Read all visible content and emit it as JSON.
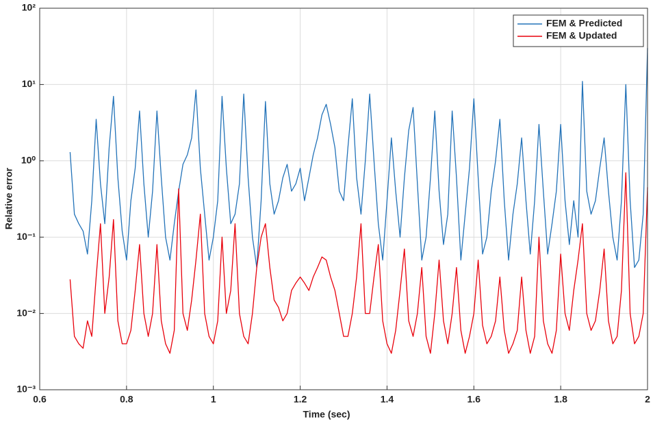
{
  "chart_data": {
    "type": "line",
    "xlabel": "Time (sec)",
    "ylabel": "Relative error",
    "log_y": true,
    "grid": true,
    "legend": "upper right",
    "xlim": [
      0.6,
      2
    ],
    "ylim": [
      0.001,
      100
    ],
    "xticks": [
      0.6,
      0.8,
      1,
      1.2,
      1.4,
      1.6,
      1.8,
      2
    ],
    "yticks": [
      {
        "value": 0.001,
        "label": "10⁻³"
      },
      {
        "value": 0.01,
        "label": "10⁻²"
      },
      {
        "value": 0.1,
        "label": "10⁻¹"
      },
      {
        "value": 1,
        "label": "10⁰"
      },
      {
        "value": 10,
        "label": "10¹"
      },
      {
        "value": 100,
        "label": "10²"
      }
    ],
    "x": [
      0.67,
      0.68,
      0.69,
      0.7,
      0.71,
      0.72,
      0.73,
      0.74,
      0.75,
      0.76,
      0.77,
      0.78,
      0.79,
      0.8,
      0.81,
      0.82,
      0.83,
      0.84,
      0.85,
      0.86,
      0.87,
      0.88,
      0.89,
      0.9,
      0.91,
      0.92,
      0.93,
      0.94,
      0.95,
      0.96,
      0.97,
      0.98,
      0.99,
      1.0,
      1.01,
      1.02,
      1.03,
      1.04,
      1.05,
      1.06,
      1.07,
      1.08,
      1.09,
      1.1,
      1.11,
      1.12,
      1.13,
      1.14,
      1.15,
      1.16,
      1.17,
      1.18,
      1.19,
      1.2,
      1.21,
      1.22,
      1.23,
      1.24,
      1.25,
      1.26,
      1.27,
      1.28,
      1.29,
      1.3,
      1.31,
      1.32,
      1.33,
      1.34,
      1.35,
      1.36,
      1.37,
      1.38,
      1.39,
      1.4,
      1.41,
      1.42,
      1.43,
      1.44,
      1.45,
      1.46,
      1.47,
      1.48,
      1.49,
      1.5,
      1.51,
      1.52,
      1.53,
      1.54,
      1.55,
      1.56,
      1.57,
      1.58,
      1.59,
      1.6,
      1.61,
      1.62,
      1.63,
      1.64,
      1.65,
      1.66,
      1.67,
      1.68,
      1.69,
      1.7,
      1.71,
      1.72,
      1.73,
      1.74,
      1.75,
      1.76,
      1.77,
      1.78,
      1.79,
      1.8,
      1.81,
      1.82,
      1.83,
      1.84,
      1.85,
      1.86,
      1.87,
      1.88,
      1.89,
      1.9,
      1.91,
      1.92,
      1.93,
      1.94,
      1.95,
      1.96,
      1.97,
      1.98,
      1.99,
      2.0
    ],
    "series": [
      {
        "name": "FEM & Predicted",
        "color": "#2272b8",
        "values": [
          1.3,
          0.2,
          0.15,
          0.12,
          0.06,
          0.3,
          3.5,
          0.5,
          0.15,
          1.5,
          7,
          0.6,
          0.12,
          0.05,
          0.3,
          0.8,
          4.5,
          0.5,
          0.1,
          0.4,
          4.5,
          0.6,
          0.1,
          0.05,
          0.15,
          0.4,
          0.9,
          1.2,
          2,
          8.5,
          0.8,
          0.2,
          0.05,
          0.1,
          0.3,
          7,
          0.8,
          0.15,
          0.2,
          0.5,
          7.5,
          0.6,
          0.1,
          0.04,
          0.3,
          6,
          0.5,
          0.2,
          0.3,
          0.6,
          0.9,
          0.4,
          0.5,
          0.8,
          0.3,
          0.6,
          1.2,
          2,
          4,
          5.5,
          3,
          1.5,
          0.4,
          0.3,
          1.5,
          6.5,
          0.6,
          0.2,
          1,
          7.5,
          1,
          0.15,
          0.05,
          0.3,
          2,
          0.4,
          0.1,
          0.6,
          2.5,
          5,
          0.5,
          0.05,
          0.1,
          0.6,
          4.5,
          0.4,
          0.08,
          0.2,
          4.5,
          0.6,
          0.05,
          0.2,
          0.8,
          6.5,
          0.6,
          0.06,
          0.1,
          0.4,
          1,
          3.5,
          0.3,
          0.05,
          0.2,
          0.5,
          2,
          0.3,
          0.06,
          0.3,
          3,
          0.4,
          0.06,
          0.15,
          0.4,
          3,
          0.3,
          0.08,
          0.3,
          0.1,
          11,
          0.4,
          0.2,
          0.3,
          0.8,
          2,
          0.4,
          0.1,
          0.05,
          0.3,
          10,
          0.3,
          0.04,
          0.05,
          0.2,
          30
        ]
      },
      {
        "name": "FEM & Updated",
        "color": "#e8000b",
        "values": [
          0.028,
          0.005,
          0.004,
          0.0035,
          0.008,
          0.005,
          0.03,
          0.15,
          0.01,
          0.03,
          0.17,
          0.008,
          0.004,
          0.004,
          0.006,
          0.02,
          0.08,
          0.01,
          0.005,
          0.01,
          0.08,
          0.008,
          0.004,
          0.003,
          0.006,
          0.43,
          0.01,
          0.006,
          0.015,
          0.05,
          0.2,
          0.01,
          0.005,
          0.004,
          0.008,
          0.1,
          0.01,
          0.02,
          0.15,
          0.01,
          0.005,
          0.004,
          0.01,
          0.04,
          0.1,
          0.15,
          0.04,
          0.015,
          0.012,
          0.008,
          0.01,
          0.02,
          0.025,
          0.03,
          0.025,
          0.02,
          0.03,
          0.04,
          0.055,
          0.05,
          0.03,
          0.02,
          0.01,
          0.005,
          0.005,
          0.01,
          0.03,
          0.15,
          0.01,
          0.01,
          0.03,
          0.08,
          0.008,
          0.004,
          0.003,
          0.006,
          0.02,
          0.07,
          0.008,
          0.005,
          0.01,
          0.04,
          0.005,
          0.003,
          0.01,
          0.05,
          0.008,
          0.004,
          0.01,
          0.04,
          0.006,
          0.003,
          0.005,
          0.01,
          0.05,
          0.007,
          0.004,
          0.005,
          0.008,
          0.03,
          0.006,
          0.003,
          0.004,
          0.006,
          0.03,
          0.006,
          0.003,
          0.005,
          0.1,
          0.008,
          0.004,
          0.003,
          0.006,
          0.06,
          0.01,
          0.006,
          0.02,
          0.05,
          0.15,
          0.01,
          0.006,
          0.008,
          0.02,
          0.07,
          0.008,
          0.004,
          0.005,
          0.02,
          0.7,
          0.01,
          0.004,
          0.005,
          0.01,
          0.45
        ]
      }
    ]
  }
}
